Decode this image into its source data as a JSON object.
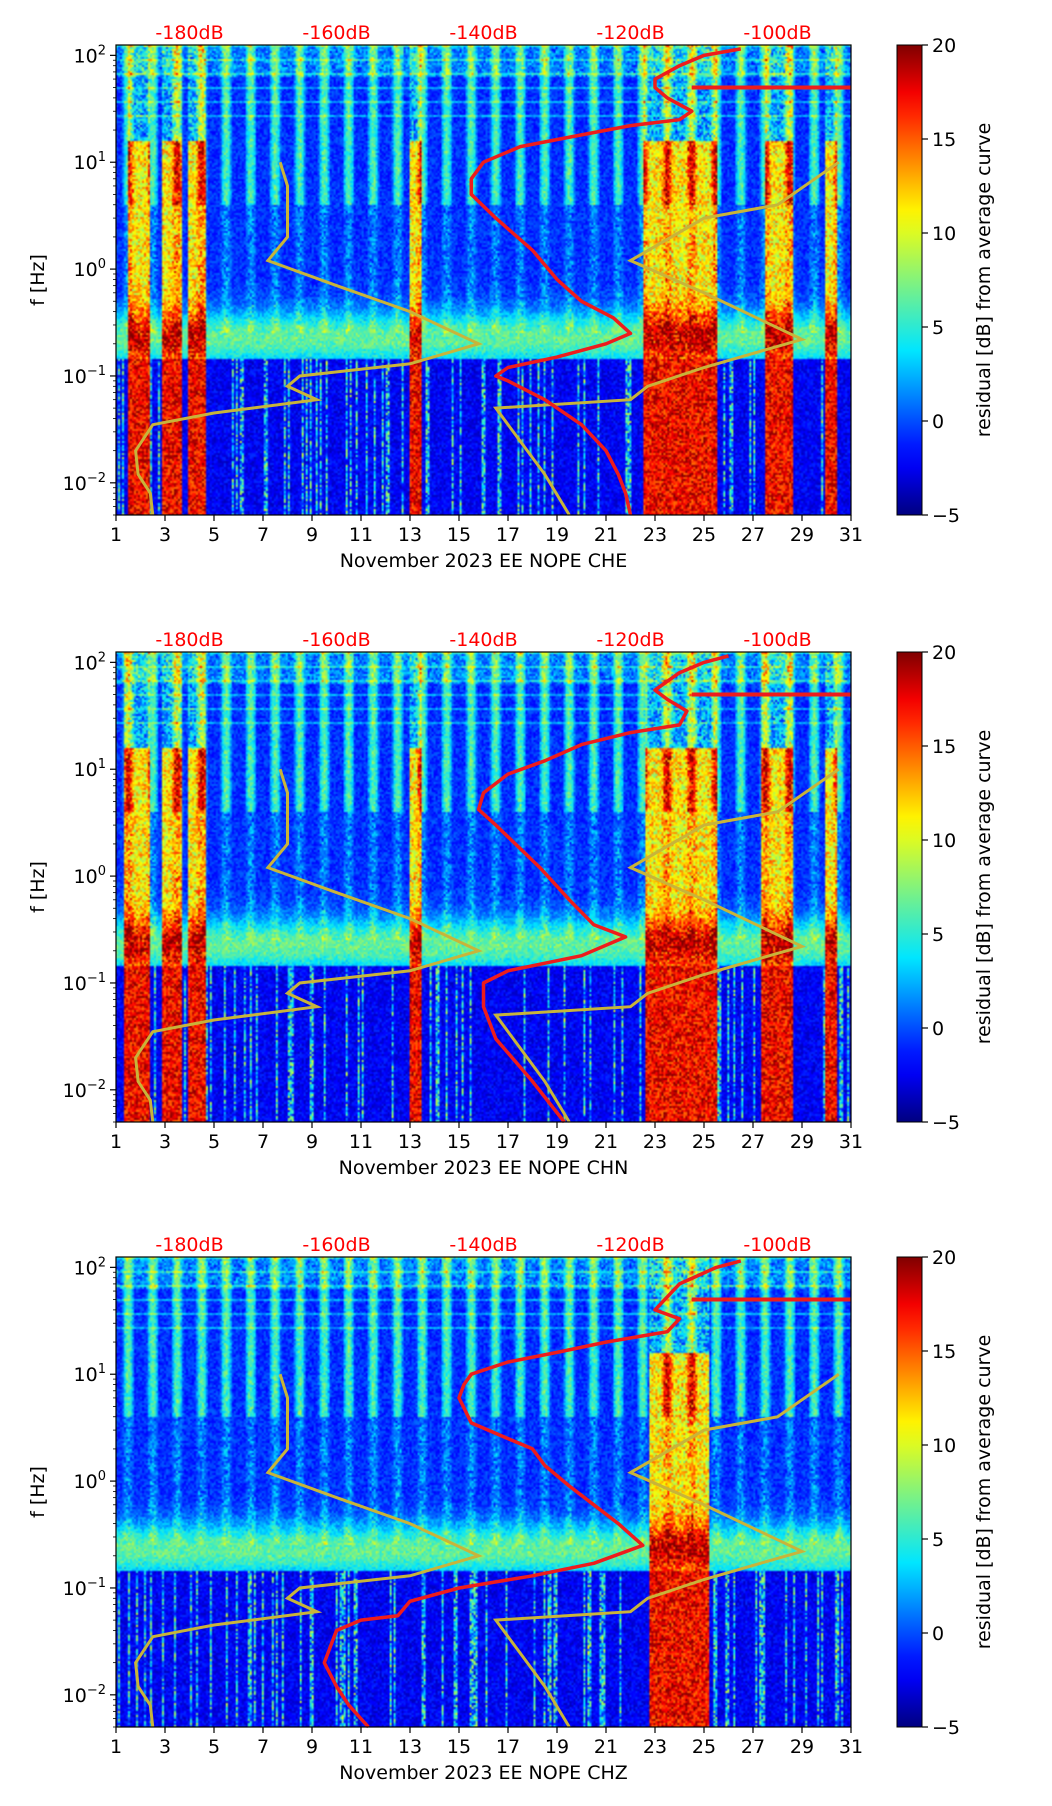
{
  "chart_data": [
    {
      "type": "heatmap",
      "channel": "CHE",
      "xlabel": "November 2023 EE NOPE  CHE",
      "ylabel": "f [Hz]",
      "x_ticks": [
        "1",
        "3",
        "5",
        "7",
        "9",
        "11",
        "13",
        "15",
        "17",
        "19",
        "21",
        "23",
        "25",
        "27",
        "29",
        "31"
      ],
      "xlim": [
        1,
        31
      ],
      "y_ticks": [
        {
          "exp": "2",
          "value": 100
        },
        {
          "exp": "1",
          "value": 10
        },
        {
          "exp": "0",
          "value": 1
        },
        {
          "exp": "−1",
          "value": 0.1
        },
        {
          "exp": "−2",
          "value": 0.01
        }
      ],
      "ylim": [
        0.005,
        125
      ],
      "top_labels": [
        {
          "text": "-180dB",
          "day": 4
        },
        {
          "text": "-160dB",
          "day": 10
        },
        {
          "text": "-140dB",
          "day": 16
        },
        {
          "text": "-120dB",
          "day": 22
        },
        {
          "text": "-100dB",
          "day": 28
        }
      ],
      "colorbar": {
        "label": "residual [dB] from average curve",
        "min": -5,
        "max": 20,
        "ticks": [
          "−5",
          "0",
          "5",
          "10",
          "15",
          "20"
        ]
      },
      "hot_bands": [
        [
          1.5,
          2.4
        ],
        [
          2.9,
          3.7
        ],
        [
          3.9,
          4.7
        ],
        [
          13,
          13.5
        ],
        [
          22.5,
          25.5
        ],
        [
          27.5,
          28.6
        ],
        [
          29.9,
          30.4
        ]
      ],
      "red_curve": {
        "name": "average curve",
        "points": [
          [
            22,
            0.005
          ],
          [
            21.8,
            0.008
          ],
          [
            21.5,
            0.012
          ],
          [
            21,
            0.02
          ],
          [
            20,
            0.035
          ],
          [
            18.5,
            0.06
          ],
          [
            17,
            0.09
          ],
          [
            16.5,
            0.1
          ],
          [
            17,
            0.12
          ],
          [
            19,
            0.15
          ],
          [
            21,
            0.2
          ],
          [
            22,
            0.25
          ],
          [
            21.3,
            0.35
          ],
          [
            20,
            0.5
          ],
          [
            19,
            0.8
          ],
          [
            18,
            1.5
          ],
          [
            16.5,
            3
          ],
          [
            15.5,
            5
          ],
          [
            15.5,
            7
          ],
          [
            16,
            10
          ],
          [
            17.5,
            14
          ],
          [
            20,
            18
          ],
          [
            22,
            22
          ],
          [
            24,
            25
          ],
          [
            24.5,
            30
          ],
          [
            23.5,
            40
          ],
          [
            23,
            50
          ],
          [
            23,
            60
          ],
          [
            24,
            80
          ],
          [
            25,
            100
          ],
          [
            26.5,
            115
          ]
        ]
      },
      "yellow_curve": {
        "name": "reference curve",
        "points": [
          [
            2.5,
            0.005
          ],
          [
            2.4,
            0.008
          ],
          [
            1.9,
            0.012
          ],
          [
            1.8,
            0.02
          ],
          [
            2.5,
            0.035
          ],
          [
            5,
            0.045
          ],
          [
            9.2,
            0.06
          ],
          [
            8,
            0.08
          ],
          [
            8.5,
            0.1
          ],
          [
            13,
            0.13
          ],
          [
            15.8,
            0.2
          ],
          [
            13,
            0.4
          ],
          [
            10,
            0.7
          ],
          [
            7.2,
            1.2
          ],
          [
            8,
            2
          ],
          [
            8,
            6
          ],
          [
            7.7,
            10
          ]
        ],
        "points_b": [
          [
            19.5,
            0.005
          ],
          [
            18.5,
            0.012
          ],
          [
            16.5,
            0.05
          ],
          [
            22,
            0.06
          ],
          [
            22.7,
            0.08
          ],
          [
            25,
            0.12
          ],
          [
            29,
            0.22
          ],
          [
            25,
            0.6
          ],
          [
            22,
            1.2
          ],
          [
            25,
            3
          ],
          [
            28,
            4
          ],
          [
            30.5,
            10
          ]
        ]
      }
    },
    {
      "type": "heatmap",
      "channel": "CHN",
      "xlabel": "November 2023 EE NOPE  CHN",
      "ylabel": "f [Hz]",
      "x_ticks": [
        "1",
        "3",
        "5",
        "7",
        "9",
        "11",
        "13",
        "15",
        "17",
        "19",
        "21",
        "23",
        "25",
        "27",
        "29",
        "31"
      ],
      "xlim": [
        1,
        31
      ],
      "y_ticks": [
        {
          "exp": "2",
          "value": 100
        },
        {
          "exp": "1",
          "value": 10
        },
        {
          "exp": "0",
          "value": 1
        },
        {
          "exp": "−1",
          "value": 0.1
        },
        {
          "exp": "−2",
          "value": 0.01
        }
      ],
      "ylim": [
        0.005,
        125
      ],
      "top_labels": [
        {
          "text": "-180dB",
          "day": 4
        },
        {
          "text": "-160dB",
          "day": 10
        },
        {
          "text": "-140dB",
          "day": 16
        },
        {
          "text": "-120dB",
          "day": 22
        },
        {
          "text": "-100dB",
          "day": 28
        }
      ],
      "colorbar": {
        "label": "residual [dB] from average curve",
        "min": -5,
        "max": 20,
        "ticks": [
          "−5",
          "0",
          "5",
          "10",
          "15",
          "20"
        ]
      },
      "hot_bands": [
        [
          1.3,
          2.4
        ],
        [
          2.9,
          3.7
        ],
        [
          3.9,
          4.7
        ],
        [
          13,
          13.5
        ],
        [
          22.6,
          25.5
        ],
        [
          27.3,
          28.6
        ],
        [
          29.9,
          30.4
        ]
      ],
      "red_curve": {
        "name": "average curve",
        "points": [
          [
            19.3,
            0.005
          ],
          [
            18,
            0.012
          ],
          [
            16.5,
            0.03
          ],
          [
            16,
            0.06
          ],
          [
            16,
            0.1
          ],
          [
            17,
            0.13
          ],
          [
            20,
            0.18
          ],
          [
            21.8,
            0.27
          ],
          [
            20.5,
            0.35
          ],
          [
            19.5,
            0.6
          ],
          [
            18.3,
            1.2
          ],
          [
            16.5,
            3
          ],
          [
            15.8,
            4.2
          ],
          [
            16,
            6
          ],
          [
            17,
            9
          ],
          [
            18.5,
            12
          ],
          [
            20,
            17
          ],
          [
            22,
            22
          ],
          [
            24,
            26
          ],
          [
            24.3,
            35
          ],
          [
            23.5,
            45
          ],
          [
            23,
            55
          ],
          [
            24,
            80
          ],
          [
            25,
            100
          ],
          [
            26,
            115
          ]
        ]
      },
      "yellow_curve": {
        "name": "reference curve",
        "points": [
          [
            2.5,
            0.005
          ],
          [
            2.4,
            0.008
          ],
          [
            1.9,
            0.012
          ],
          [
            1.8,
            0.02
          ],
          [
            2.5,
            0.035
          ],
          [
            5,
            0.045
          ],
          [
            9.2,
            0.06
          ],
          [
            8,
            0.08
          ],
          [
            8.5,
            0.1
          ],
          [
            13,
            0.13
          ],
          [
            15.8,
            0.2
          ],
          [
            13,
            0.4
          ],
          [
            10,
            0.7
          ],
          [
            7.2,
            1.2
          ],
          [
            8,
            2
          ],
          [
            8,
            6
          ],
          [
            7.7,
            10
          ]
        ],
        "points_b": [
          [
            19.5,
            0.005
          ],
          [
            18.5,
            0.012
          ],
          [
            16.5,
            0.05
          ],
          [
            22,
            0.06
          ],
          [
            22.7,
            0.08
          ],
          [
            25,
            0.12
          ],
          [
            29,
            0.22
          ],
          [
            25,
            0.6
          ],
          [
            22,
            1.2
          ],
          [
            25,
            3
          ],
          [
            28,
            4
          ],
          [
            30.5,
            10
          ]
        ]
      }
    },
    {
      "type": "heatmap",
      "channel": "CHZ",
      "xlabel": "November 2023 EE NOPE  CHZ",
      "ylabel": "f [Hz]",
      "x_ticks": [
        "1",
        "3",
        "5",
        "7",
        "9",
        "11",
        "13",
        "15",
        "17",
        "19",
        "21",
        "23",
        "25",
        "27",
        "29",
        "31"
      ],
      "xlim": [
        1,
        31
      ],
      "y_ticks": [
        {
          "exp": "2",
          "value": 100
        },
        {
          "exp": "1",
          "value": 10
        },
        {
          "exp": "0",
          "value": 1
        },
        {
          "exp": "−1",
          "value": 0.1
        },
        {
          "exp": "−2",
          "value": 0.01
        }
      ],
      "ylim": [
        0.005,
        125
      ],
      "top_labels": [
        {
          "text": "-180dB",
          "day": 4
        },
        {
          "text": "-160dB",
          "day": 10
        },
        {
          "text": "-140dB",
          "day": 16
        },
        {
          "text": "-120dB",
          "day": 22
        },
        {
          "text": "-100dB",
          "day": 28
        }
      ],
      "colorbar": {
        "label": "residual [dB] from average curve",
        "min": -5,
        "max": 20,
        "ticks": [
          "−5",
          "0",
          "5",
          "10",
          "15",
          "20"
        ]
      },
      "hot_bands": [
        [
          22.8,
          25.2
        ]
      ],
      "red_curve": {
        "name": "average curve",
        "points": [
          [
            11.3,
            0.005
          ],
          [
            10.5,
            0.008
          ],
          [
            10,
            0.012
          ],
          [
            9.5,
            0.02
          ],
          [
            10,
            0.04
          ],
          [
            11,
            0.05
          ],
          [
            12.5,
            0.055
          ],
          [
            13,
            0.075
          ],
          [
            15,
            0.1
          ],
          [
            18,
            0.13
          ],
          [
            20.5,
            0.17
          ],
          [
            22.5,
            0.25
          ],
          [
            21.5,
            0.4
          ],
          [
            20.5,
            0.6
          ],
          [
            19.5,
            0.9
          ],
          [
            18.5,
            1.4
          ],
          [
            18,
            2
          ],
          [
            17,
            2.5
          ],
          [
            15.5,
            3.5
          ],
          [
            15,
            6
          ],
          [
            15.2,
            8
          ],
          [
            15.5,
            10
          ],
          [
            17,
            13
          ],
          [
            19,
            16
          ],
          [
            21,
            20
          ],
          [
            23.5,
            25
          ],
          [
            24,
            33
          ],
          [
            23,
            40
          ],
          [
            24,
            70
          ],
          [
            25.5,
            100
          ],
          [
            26.5,
            115
          ]
        ]
      },
      "yellow_curve": {
        "name": "reference curve",
        "points": [
          [
            2.5,
            0.005
          ],
          [
            2.4,
            0.008
          ],
          [
            1.9,
            0.012
          ],
          [
            1.8,
            0.02
          ],
          [
            2.5,
            0.035
          ],
          [
            5,
            0.045
          ],
          [
            9.2,
            0.06
          ],
          [
            8,
            0.08
          ],
          [
            8.5,
            0.1
          ],
          [
            13,
            0.13
          ],
          [
            15.8,
            0.2
          ],
          [
            13,
            0.4
          ],
          [
            10,
            0.7
          ],
          [
            7.2,
            1.2
          ],
          [
            8,
            2
          ],
          [
            8,
            6
          ],
          [
            7.7,
            10
          ]
        ],
        "points_b": [
          [
            19.5,
            0.005
          ],
          [
            18.5,
            0.012
          ],
          [
            16.5,
            0.05
          ],
          [
            22,
            0.06
          ],
          [
            22.7,
            0.08
          ],
          [
            25,
            0.12
          ],
          [
            29,
            0.22
          ],
          [
            25,
            0.6
          ],
          [
            22,
            1.2
          ],
          [
            25,
            3
          ],
          [
            28,
            4
          ],
          [
            30.5,
            10
          ]
        ]
      }
    }
  ],
  "colors": {
    "red_curve": "#ee1c1c",
    "yellow_curve": "#c8b43a",
    "db_label": "#ff0000",
    "jet": [
      "#00007f",
      "#0000ff",
      "#007fff",
      "#00ffff",
      "#7fff7f",
      "#ffff00",
      "#ff7f00",
      "#ff0000",
      "#7f0000"
    ]
  }
}
